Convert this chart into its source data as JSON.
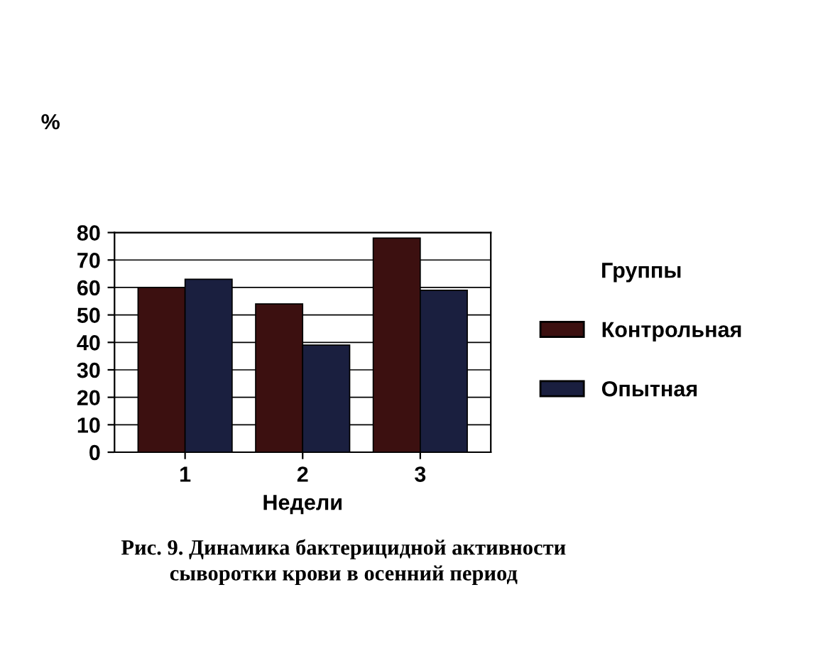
{
  "chart_data": {
    "type": "bar",
    "categories": [
      "1",
      "2",
      "3"
    ],
    "series": [
      {
        "name": "Контрольная",
        "color": "#3c1010",
        "values": [
          60,
          54,
          78
        ]
      },
      {
        "name": "Опытная",
        "color": "#1a1f3f",
        "values": [
          63,
          39,
          59
        ]
      }
    ],
    "xlabel": "Недели",
    "ylabel": "%",
    "legend_title": "Группы",
    "legend": "right",
    "ylim": [
      0,
      80
    ],
    "yticks": [
      0,
      10,
      20,
      30,
      40,
      50,
      60,
      70,
      80
    ],
    "grid": "y",
    "annotations": [
      "Рис. 9. Динамика бактерицидной активности\nсыворотки крови в осенний период"
    ]
  }
}
